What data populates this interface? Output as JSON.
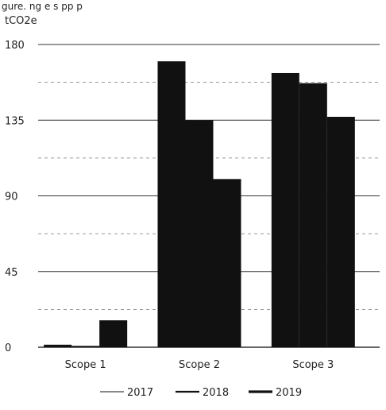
{
  "header_text": "gure. ng   e     s   pp p        ",
  "chart_data": {
    "type": "bar",
    "unit": "tCO2e",
    "categories": [
      "Scope 1",
      "Scope 2",
      "Scope 3"
    ],
    "series": [
      {
        "name": "2017",
        "values": [
          1.5,
          170,
          163
        ]
      },
      {
        "name": "2018",
        "values": [
          0.8,
          135,
          157
        ]
      },
      {
        "name": "2019",
        "values": [
          16,
          100,
          137
        ]
      }
    ],
    "ylim": [
      0,
      180
    ],
    "yticks": [
      "0",
      "45",
      "90",
      "135",
      "180"
    ],
    "grid": true,
    "legend": "bottom",
    "bar_color": "#111111"
  }
}
